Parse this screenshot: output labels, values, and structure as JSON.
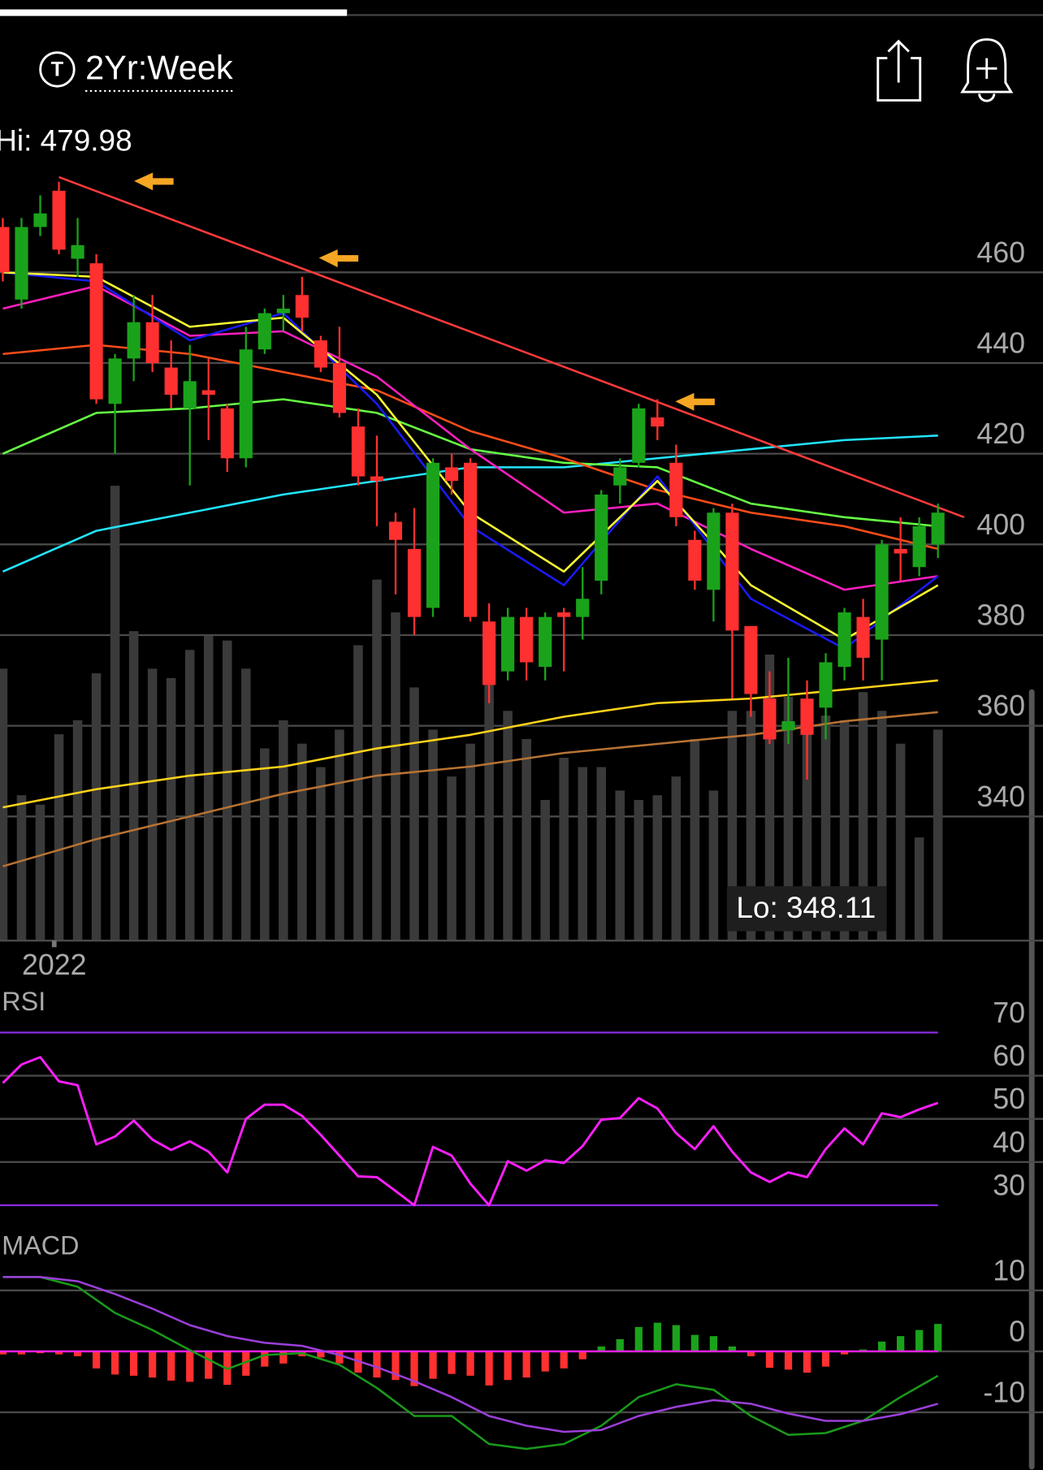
{
  "header": {
    "range": "2Yr:Week"
  },
  "chart_data": [
    {
      "type": "candlestick",
      "high_label": "Hi: 479.98",
      "low_label": "Lo: 348.11",
      "categories": [
        null,
        null,
        null,
        "2022",
        null,
        null,
        null,
        null,
        null,
        null,
        null,
        null,
        null,
        null,
        null,
        null,
        null,
        null,
        null,
        null,
        null,
        null,
        null,
        null,
        null,
        null,
        null,
        null,
        null,
        null,
        null,
        null,
        null,
        null,
        null,
        null,
        null,
        null,
        null,
        null,
        null,
        null,
        null,
        null,
        null,
        null,
        null,
        null,
        null,
        null,
        null
      ],
      "open": [
        470,
        454,
        470,
        478,
        463,
        462,
        431,
        441,
        449,
        439,
        430,
        434,
        430,
        419,
        443,
        451,
        455,
        445,
        440,
        426,
        415,
        405,
        399,
        386,
        417,
        418,
        383,
        372,
        384,
        373,
        385,
        384,
        392,
        413,
        418,
        428,
        418,
        401,
        390,
        407,
        382,
        366,
        359,
        366,
        364,
        373,
        384,
        379,
        399,
        395,
        400
      ],
      "high": [
        472,
        472,
        477,
        479.98,
        472,
        464,
        442,
        455,
        455,
        445,
        444,
        441,
        431,
        448,
        452,
        455,
        459,
        446,
        448,
        430,
        424,
        407,
        408,
        419,
        420,
        419,
        387,
        386,
        386,
        385,
        386,
        395,
        412,
        419,
        431,
        432,
        422,
        403,
        408,
        409,
        382,
        372,
        375,
        370,
        376,
        386,
        388,
        401,
        406,
        406,
        409
      ],
      "low": [
        458,
        452,
        468,
        464,
        459,
        431,
        420,
        436,
        438,
        430,
        413,
        423,
        416,
        417,
        442,
        447,
        447,
        438,
        428,
        413,
        404,
        389,
        380,
        384,
        411,
        383,
        365,
        370,
        370,
        370,
        372,
        379,
        389,
        409,
        417,
        423,
        404,
        390,
        383,
        366,
        362,
        356,
        356,
        348.11,
        357,
        370,
        370,
        370,
        392,
        393,
        397
      ],
      "close": [
        460,
        470,
        473,
        465,
        466,
        432,
        441,
        449,
        440,
        433,
        436,
        433,
        419,
        443,
        451,
        452,
        450,
        439,
        429,
        415,
        414,
        401,
        384,
        418,
        414,
        384,
        369,
        384,
        374,
        384,
        384,
        388,
        411,
        417,
        430,
        426,
        406,
        392,
        407,
        381,
        367,
        357,
        361,
        358,
        374,
        385,
        375,
        400,
        398,
        404,
        407
      ],
      "up_color": "#1aa31a",
      "down_color": "#ff3030",
      "volume": {
        "color": "#3a3a3a",
        "vlim": [
          0,
          100
        ],
        "values": [
          58,
          31,
          29,
          44,
          47,
          57,
          97,
          66,
          58,
          56,
          62,
          65,
          64,
          58,
          41,
          47,
          42,
          37,
          45,
          63,
          77,
          70,
          54,
          45,
          35,
          42,
          68,
          49,
          43,
          30,
          39,
          37,
          37,
          32,
          30,
          31,
          35,
          43,
          32,
          49,
          49,
          61,
          52,
          47,
          48,
          47,
          53,
          49,
          42,
          22,
          45
        ]
      },
      "ylim": [
        312,
        494
      ],
      "yticks": [
        340,
        360,
        380,
        400,
        420,
        440,
        460
      ],
      "grid": true,
      "lines": [
        {
          "color": "#ffd21a",
          "x": [
            0,
            5,
            10,
            15,
            20,
            25,
            30,
            35,
            40,
            45,
            50
          ],
          "values": [
            342,
            346,
            349,
            351,
            355,
            358,
            362,
            365,
            366,
            368,
            370
          ]
        },
        {
          "color": "#b87333",
          "x": [
            0,
            5,
            10,
            15,
            20,
            25,
            30,
            35,
            40,
            45,
            50
          ],
          "values": [
            329,
            335,
            340,
            345,
            349,
            351,
            354,
            356,
            358,
            361,
            363
          ]
        },
        {
          "color": "#22e5ff",
          "x": [
            0,
            5,
            10,
            15,
            20,
            25,
            30,
            35,
            40,
            45,
            50
          ],
          "values": [
            394,
            403,
            407,
            411,
            414,
            417,
            417,
            419,
            421,
            423,
            424
          ]
        },
        {
          "color": "#66ff44",
          "x": [
            0,
            5,
            10,
            15,
            20,
            25,
            30,
            35,
            40,
            45,
            50
          ],
          "values": [
            420,
            429,
            430,
            432,
            429,
            421,
            418,
            417,
            409,
            406,
            404
          ]
        },
        {
          "color": "#ff4d1a",
          "x": [
            0,
            5,
            10,
            15,
            20,
            25,
            30,
            35,
            40,
            45,
            50
          ],
          "values": [
            442,
            444,
            442,
            438,
            434,
            425,
            419,
            412,
            407,
            404,
            399
          ]
        },
        {
          "color": "#ff1fbf",
          "x": [
            0,
            5,
            10,
            15,
            20,
            25,
            30,
            35,
            40,
            45,
            50
          ],
          "values": [
            452,
            457,
            446,
            447,
            437,
            421,
            407,
            409,
            399,
            390,
            393
          ]
        },
        {
          "color": "#1a1aff",
          "x": [
            0,
            5,
            10,
            15,
            20,
            25,
            30,
            35,
            40,
            45,
            50
          ],
          "values": [
            460,
            458,
            445,
            451,
            431,
            404,
            391,
            415,
            388,
            377,
            393
          ]
        },
        {
          "color": "#ffff33",
          "x": [
            0,
            5,
            10,
            15,
            20,
            25,
            30,
            35,
            40,
            45,
            50
          ],
          "values": [
            460,
            459,
            448,
            450,
            433,
            407,
            394,
            414,
            391,
            379,
            391
          ]
        },
        {
          "color": "#ff3b3b",
          "x": [
            3,
            51.4
          ],
          "values": [
            481,
            406
          ]
        }
      ]
    },
    {
      "type": "line",
      "title": "RSI",
      "color": "#ff1fff",
      "values": [
        58.3,
        62.6,
        64.3,
        58.7,
        57.8,
        44.1,
        45.9,
        49.6,
        45.2,
        42.8,
        44.8,
        42.4,
        37.6,
        50,
        53.3,
        53.3,
        50.7,
        46.3,
        41.5,
        36.7,
        36.5,
        33.3,
        30,
        43.5,
        41.5,
        35,
        30,
        40.2,
        38,
        40.4,
        39.8,
        43.7,
        49.8,
        50.2,
        54.8,
        52.4,
        46.7,
        43,
        48.3,
        42.4,
        37.6,
        35.4,
        37.6,
        36.5,
        43,
        47.8,
        44.1,
        51.3,
        50.4,
        52.2,
        53.7
      ],
      "ylim": [
        27,
        80
      ],
      "yticks": [
        30,
        40,
        50,
        60,
        70
      ],
      "grid": true,
      "bound_color": "#8a2be2"
    },
    {
      "type": "macd",
      "title": "MACD",
      "histogram": {
        "up_color": "#1aa31a",
        "down_color": "#ff3030",
        "values": [
          -0.5,
          -0.5,
          -0.3,
          -0.5,
          -0.8,
          -2.8,
          -3.8,
          -4,
          -4.3,
          -4.8,
          -5,
          -4.5,
          -5.5,
          -4,
          -2.5,
          -2,
          -0.8,
          -1,
          -2,
          -3.5,
          -4.3,
          -4.7,
          -5.7,
          -4.5,
          -3.7,
          -4,
          -5.6,
          -4.7,
          -4.3,
          -3.3,
          -2.8,
          -1.3,
          0.8,
          2,
          4,
          4.7,
          4.3,
          2.7,
          2.5,
          0.8,
          -0.8,
          -2.7,
          -3,
          -3.5,
          -2.5,
          -0.5,
          0.3,
          1.6,
          2.5,
          3.5,
          4.5
        ]
      },
      "series": [
        {
          "color": "#1a9a1a",
          "x": [
            0,
            2,
            4,
            6,
            8,
            10,
            12,
            14,
            16,
            18,
            20,
            22,
            24,
            26,
            28,
            30,
            32,
            34,
            36,
            38,
            40,
            42,
            44,
            46,
            48,
            50
          ],
          "values": [
            12.2,
            12.2,
            10.6,
            6.3,
            3.5,
            0.2,
            -2.9,
            -0.6,
            -0.3,
            -2.2,
            -6,
            -10.6,
            -10.6,
            -15.2,
            -16,
            -15.2,
            -12.2,
            -7.5,
            -5.4,
            -6.3,
            -10.6,
            -13.7,
            -13.4,
            -11.4,
            -7.5,
            -4
          ]
        },
        {
          "color": "#9b3fd9",
          "x": [
            0,
            2,
            4,
            6,
            8,
            10,
            12,
            14,
            16,
            18,
            20,
            22,
            24,
            26,
            28,
            30,
            32,
            34,
            36,
            38,
            40,
            42,
            44,
            46,
            48,
            50
          ],
          "values": [
            12.2,
            12.2,
            11.5,
            9.4,
            7,
            4.3,
            2.5,
            1.4,
            0.9,
            -0.6,
            -2.6,
            -4.9,
            -7.5,
            -10.6,
            -12.2,
            -13.2,
            -12.9,
            -10.6,
            -9.1,
            -8,
            -8.6,
            -10.2,
            -11.4,
            -11.4,
            -10.3,
            -8.6
          ]
        }
      ],
      "zero_color": "#ff1fff",
      "ylim": [
        -19,
        19
      ],
      "yticks": [
        -10,
        0,
        10
      ],
      "grid": true
    }
  ]
}
